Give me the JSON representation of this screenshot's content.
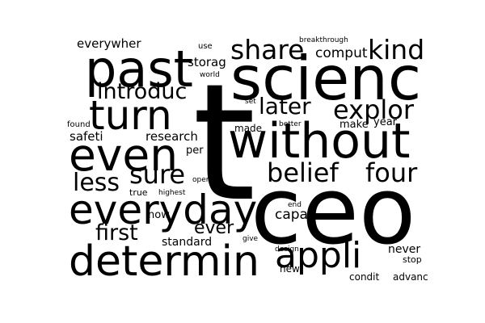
{
  "words": [
    "t",
    "ceo",
    "scienc",
    "without",
    "past",
    "even",
    "turn",
    "everyday",
    "determin",
    "appli",
    "share",
    "kind",
    "explor",
    "later",
    "introduc",
    "belief",
    "four",
    "sure",
    "less",
    "first",
    "ever",
    "capac",
    "comput",
    "storag",
    "everywher",
    "research",
    "safeti",
    "make",
    "year",
    "made",
    "per",
    "standard",
    "now",
    "never",
    "stop",
    "condit",
    "advanc",
    "new",
    "design",
    "give",
    "true",
    "highest",
    "open",
    "end",
    "breakthrough",
    "use",
    "world",
    "set",
    "found",
    "better"
  ],
  "colors": {
    "background": "#ffffff",
    "text": "#000000"
  }
}
